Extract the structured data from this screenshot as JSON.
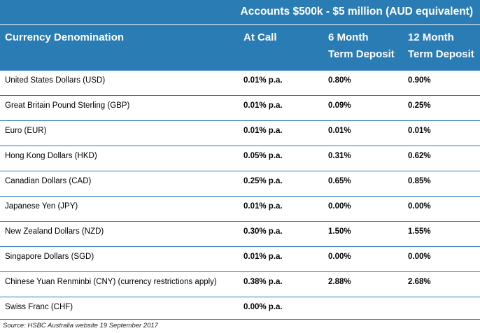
{
  "header": {
    "group_title": "Accounts $500k - $5 million (AUD equivalent)",
    "columns": {
      "name": "Currency Denomination",
      "at_call": "At Call",
      "six_month": [
        "6 Month",
        "Term Deposit"
      ],
      "twelve_month": [
        "12 Month",
        "Term Deposit"
      ]
    }
  },
  "rows": [
    {
      "currency": "United States Dollars (USD)",
      "at_call": "0.01% p.a.",
      "six_month": "0.80%",
      "twelve_month": "0.90%"
    },
    {
      "currency": "Great Britain Pound Sterling (GBP)",
      "at_call": "0.01% p.a.",
      "six_month": "0.09%",
      "twelve_month": "0.25%"
    },
    {
      "currency": "Euro (EUR)",
      "at_call": "0.01% p.a.",
      "six_month": "0.01%",
      "twelve_month": "0.01%"
    },
    {
      "currency": "Hong Kong Dollars (HKD)",
      "at_call": "0.05% p.a.",
      "six_month": "0.31%",
      "twelve_month": "0.62%"
    },
    {
      "currency": "Canadian Dollars (CAD)",
      "at_call": "0.25% p.a.",
      "six_month": "0.65%",
      "twelve_month": "0.85%"
    },
    {
      "currency": "Japanese Yen (JPY)",
      "at_call": "0.01% p.a.",
      "six_month": "0.00%",
      "twelve_month": "0.00%"
    },
    {
      "currency": "New Zealand Dollars (NZD)",
      "at_call": "0.30% p.a.",
      "six_month": "1.50%",
      "twelve_month": "1.55%"
    },
    {
      "currency": "Singapore Dollars (SGD)",
      "at_call": "0.01% p.a.",
      "six_month": "0.00%",
      "twelve_month": "0.00%"
    },
    {
      "currency": "Chinese Yuan Renminbi (CNY) (currency restrictions apply)",
      "at_call": "0.38% p.a.",
      "six_month": "2.88%",
      "twelve_month": "2.68%"
    },
    {
      "currency": "Swiss Franc (CHF)",
      "at_call": "0.00% p.a.",
      "six_month": "",
      "twelve_month": ""
    }
  ],
  "source": "Source: HSBC Australia website 19 September 2017",
  "colors": {
    "header_bg": "#2a7cb4",
    "header_text": "#ffffff",
    "row_divider": "#2a7cb4"
  }
}
